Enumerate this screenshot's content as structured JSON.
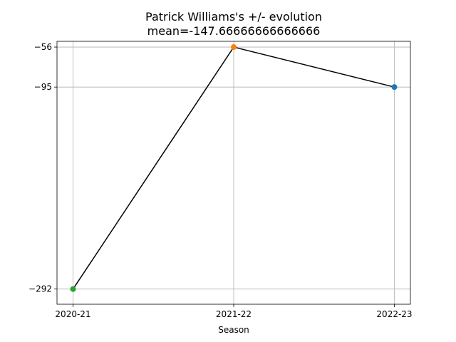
{
  "chart_data": {
    "type": "line",
    "title": "Patrick Williams's +/- evolution",
    "subtitle": "mean=-147.66666666666666",
    "xlabel": "Season",
    "ylabel": "",
    "categories": [
      "2020-21",
      "2021-22",
      "2022-23"
    ],
    "values": [
      -292,
      -56,
      -95
    ],
    "yticks": [
      -292,
      -95,
      -56
    ],
    "ytick_labels": [
      "−292",
      "−95",
      "−56"
    ],
    "ylim": [
      -306.8,
      -50.4
    ],
    "grid": true,
    "line_color": "#000000",
    "marker_colors": [
      "#2ca02c",
      "#ff7f0e",
      "#1f77b4"
    ]
  }
}
